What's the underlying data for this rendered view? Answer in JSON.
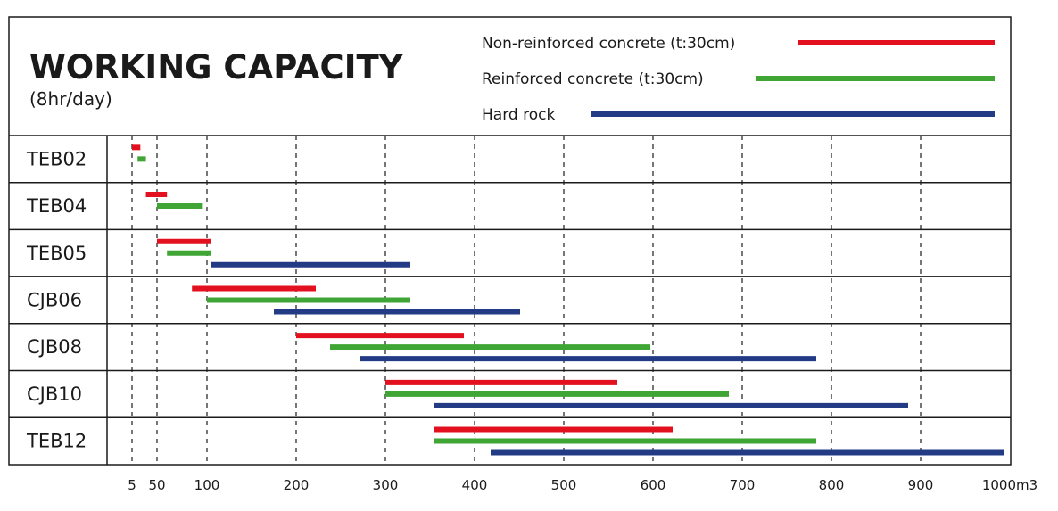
{
  "chart_data": {
    "type": "bar",
    "subtype": "range-bar",
    "title": "WORKING CAPACITY",
    "subtitle": "(8hr/day)",
    "x_unit": "m3",
    "x_ticks": [
      "5",
      "50",
      "100",
      "200",
      "300",
      "400",
      "500",
      "600",
      "700",
      "800",
      "900",
      "1000"
    ],
    "x_tick_values": [
      5,
      50,
      100,
      200,
      300,
      400,
      500,
      600,
      700,
      800,
      900,
      1000
    ],
    "x_scale": "piecewise linear (5–100 compressed, 100–1000 linear)",
    "grid": "vertical dashed lines",
    "legend_position": "top-right",
    "categories": [
      "TEB02",
      "TEB04",
      "TEB05",
      "CJB06",
      "CJB08",
      "CJB10",
      "TEB12"
    ],
    "series": [
      {
        "name": "Non-reinforced concrete (t:30cm)",
        "color": "#e3101f",
        "ranges": [
          [
            5,
            20
          ],
          [
            30,
            60
          ],
          [
            50,
            105
          ],
          [
            85,
            222
          ],
          [
            200,
            388
          ],
          [
            300,
            560
          ],
          [
            355,
            622
          ]
        ]
      },
      {
        "name": "Reinforced concrete (t:30cm)",
        "color": "#3fa535",
        "ranges": [
          [
            15,
            30
          ],
          [
            50,
            95
          ],
          [
            60,
            105
          ],
          [
            100,
            328
          ],
          [
            238,
            597
          ],
          [
            300,
            685
          ],
          [
            355,
            783
          ]
        ]
      },
      {
        "name": "Hard rock",
        "color": "#233b84",
        "ranges": [
          null,
          null,
          [
            105,
            328
          ],
          [
            175,
            451
          ],
          [
            272,
            783
          ],
          [
            355,
            886
          ],
          [
            418,
            993
          ]
        ]
      }
    ]
  }
}
